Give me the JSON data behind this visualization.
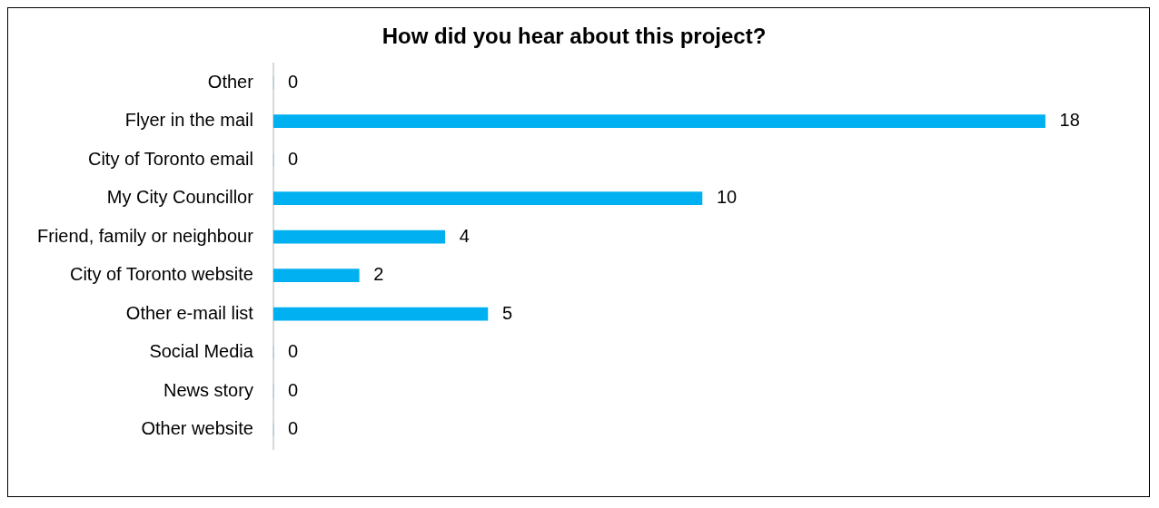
{
  "chart_data": {
    "type": "bar",
    "orientation": "horizontal",
    "title": "How did you hear about this project?",
    "categories": [
      "Other",
      "Flyer in the mail",
      "City of Toronto email",
      "My City Councillor",
      "Friend, family or neighbour",
      "City of Toronto website",
      "Other e-mail list",
      "Social Media",
      "News story",
      "Other website"
    ],
    "values": [
      0,
      18,
      0,
      10,
      4,
      2,
      5,
      0,
      0,
      0
    ],
    "color": "#00b0f0",
    "data_labels": true
  }
}
